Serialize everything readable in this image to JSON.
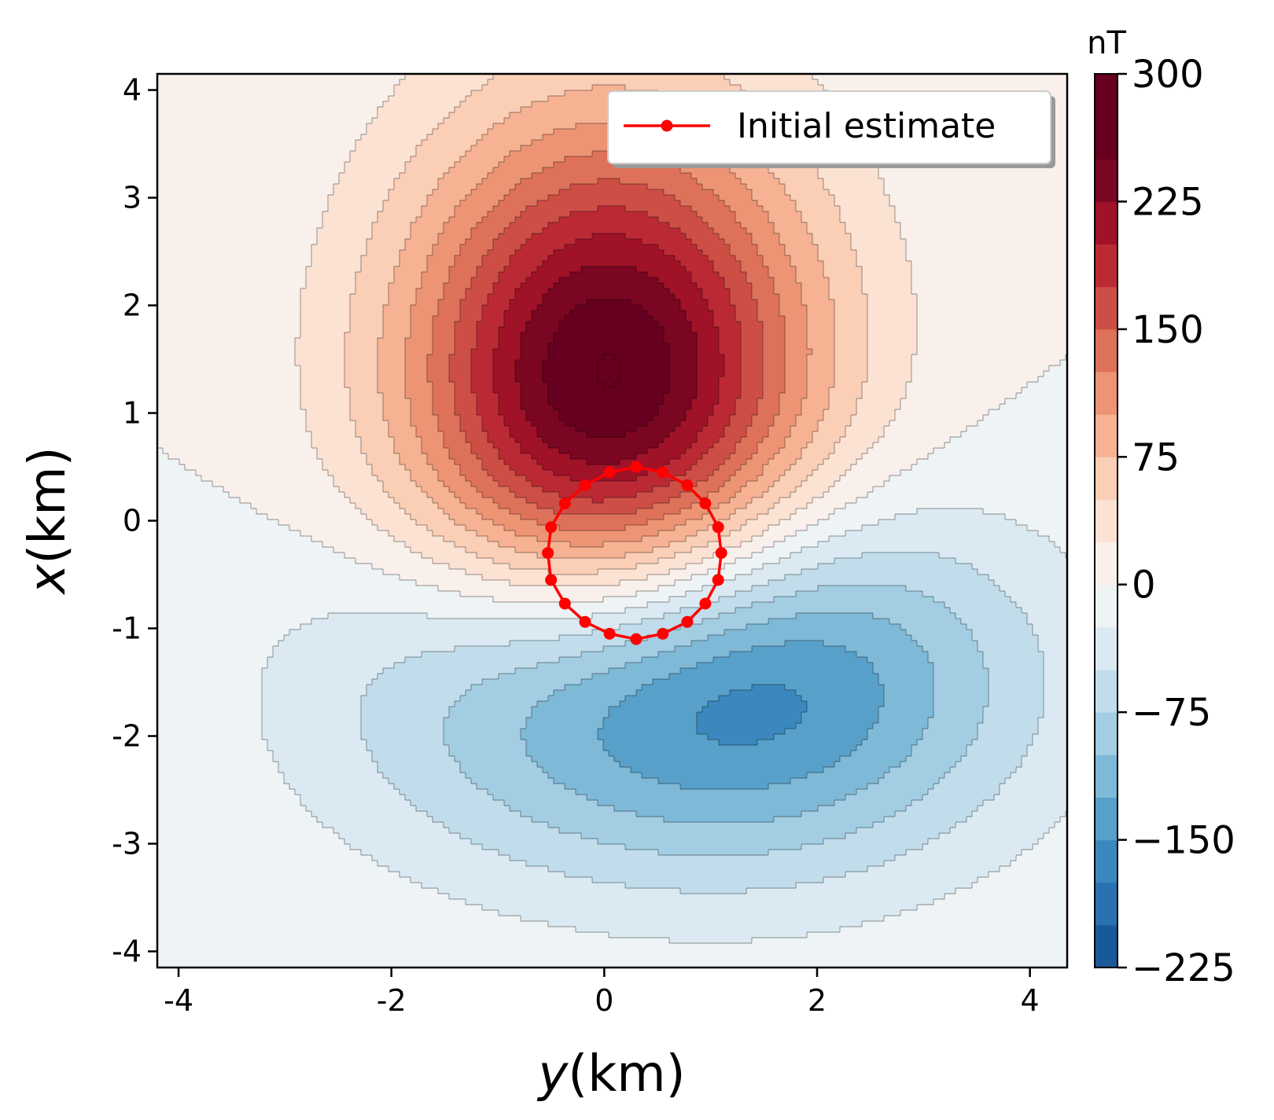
{
  "chart_data": {
    "type": "contourf",
    "xlabel_var": "y",
    "xlabel_unit": "(km)",
    "ylabel_var": "x",
    "ylabel_unit": "(km)",
    "xlim": [
      -4.2,
      4.35
    ],
    "ylim": [
      -4.15,
      4.15
    ],
    "xticks": [
      -4,
      -2,
      0,
      2,
      4
    ],
    "xtick_labels": [
      "-4",
      "-2",
      "0",
      "2",
      "4"
    ],
    "yticks": [
      4,
      3,
      2,
      1,
      0,
      -1,
      -2,
      -3,
      -4
    ],
    "ytick_labels": [
      "4",
      "3",
      "2",
      "1",
      "0",
      "-1",
      "-2",
      "-3",
      "-4"
    ],
    "colorbar": {
      "unit": "nT",
      "range": [
        -225,
        300
      ],
      "level_step": 25,
      "ticks": [
        300,
        225,
        150,
        75,
        0,
        -75,
        -150,
        -225
      ],
      "tick_labels": [
        "300",
        "225",
        "150",
        "75",
        "0",
        "−75",
        "−150",
        "−225"
      ],
      "colormap": "RdBu_r"
    },
    "field": {
      "positive_peak": {
        "y": 0.05,
        "x": 1.15,
        "value_nT": 290
      },
      "negative_peak": {
        "y": 0.75,
        "x": -1.5,
        "value_nT": -215
      }
    },
    "series": [
      {
        "name": "Initial estimate",
        "color": "#ff0000",
        "marker": "circle",
        "points": [
          {
            "y": 0.3,
            "x": 0.5
          },
          {
            "y": 0.55,
            "x": 0.45
          },
          {
            "y": 0.78,
            "x": 0.33
          },
          {
            "y": 0.95,
            "x": 0.16
          },
          {
            "y": 1.07,
            "x": -0.06
          },
          {
            "y": 1.1,
            "x": -0.3
          },
          {
            "y": 1.07,
            "x": -0.55
          },
          {
            "y": 0.95,
            "x": -0.77
          },
          {
            "y": 0.78,
            "x": -0.94
          },
          {
            "y": 0.55,
            "x": -1.05
          },
          {
            "y": 0.3,
            "x": -1.1
          },
          {
            "y": 0.05,
            "x": -1.05
          },
          {
            "y": -0.18,
            "x": -0.94
          },
          {
            "y": -0.37,
            "x": -0.77
          },
          {
            "y": -0.5,
            "x": -0.55
          },
          {
            "y": -0.53,
            "x": -0.3
          },
          {
            "y": -0.5,
            "x": -0.06
          },
          {
            "y": -0.37,
            "x": 0.16
          },
          {
            "y": -0.18,
            "x": 0.33
          },
          {
            "y": 0.05,
            "x": 0.45
          },
          {
            "y": 0.3,
            "x": 0.5
          }
        ]
      }
    ],
    "legend": {
      "placement": "upper right",
      "label": "Initial estimate"
    }
  }
}
